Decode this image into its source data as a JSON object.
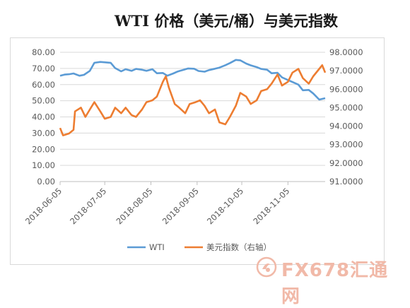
{
  "title": "WTI 价格（美元/桶）与美元指数",
  "watermark": {
    "text": "FX678汇通网"
  },
  "colors": {
    "wti": "#5b9bd5",
    "usd": "#ed7d31",
    "grid": "#d9d9d9",
    "axis_text": "#595959"
  },
  "chart_data": {
    "type": "line",
    "title": "WTI 价格（美元/桶）与美元指数",
    "grid": true,
    "legend_position": "bottom",
    "x_tick_labels": [
      "2018-06-05",
      "2018-07-05",
      "2018-08-05",
      "2018-09-05",
      "2018-10-05",
      "2018-11-05"
    ],
    "x_range": [
      "2018-06-05",
      "2018-11-30"
    ],
    "y_left": {
      "lim": [
        0,
        80
      ],
      "ticks": [
        "0.00",
        "10.00",
        "20.00",
        "30.00",
        "40.00",
        "50.00",
        "60.00",
        "70.00",
        "80.00"
      ]
    },
    "y_right": {
      "lim": [
        91,
        98
      ],
      "ticks": [
        "91.0000",
        "92.0000",
        "93.0000",
        "94.0000",
        "95.0000",
        "96.0000",
        "97.0000",
        "98.0000"
      ]
    },
    "series": [
      {
        "name": "WTI",
        "axis": "left",
        "x": [
          "2018-06-05",
          "2018-06-08",
          "2018-06-11",
          "2018-06-14",
          "2018-06-18",
          "2018-06-21",
          "2018-06-25",
          "2018-06-28",
          "2018-07-02",
          "2018-07-05",
          "2018-07-09",
          "2018-07-12",
          "2018-07-16",
          "2018-07-19",
          "2018-07-23",
          "2018-07-26",
          "2018-07-30",
          "2018-08-02",
          "2018-08-06",
          "2018-08-09",
          "2018-08-13",
          "2018-08-16",
          "2018-08-20",
          "2018-08-23",
          "2018-08-27",
          "2018-08-30",
          "2018-09-03",
          "2018-09-06",
          "2018-09-10",
          "2018-09-13",
          "2018-09-17",
          "2018-09-20",
          "2018-09-24",
          "2018-09-27",
          "2018-10-01",
          "2018-10-04",
          "2018-10-08",
          "2018-10-11",
          "2018-10-15",
          "2018-10-18",
          "2018-10-22",
          "2018-10-25",
          "2018-10-29",
          "2018-11-01",
          "2018-11-05",
          "2018-11-08",
          "2018-11-12",
          "2018-11-15",
          "2018-11-19",
          "2018-11-22",
          "2018-11-26",
          "2018-11-30"
        ],
        "values": [
          65.5,
          66.2,
          66.4,
          66.9,
          65.5,
          66.0,
          68.5,
          73.5,
          74.0,
          73.8,
          73.5,
          70.2,
          68.2,
          69.5,
          68.5,
          69.7,
          69.2,
          68.5,
          69.5,
          67.0,
          67.2,
          65.5,
          66.9,
          68.1,
          69.2,
          70.0,
          69.8,
          68.4,
          68.0,
          69.0,
          69.8,
          70.5,
          72.0,
          73.3,
          75.3,
          75.0,
          73.0,
          71.9,
          70.8,
          69.7,
          69.2,
          67.0,
          67.3,
          64.5,
          62.8,
          61.6,
          60.0,
          56.5,
          56.7,
          54.5,
          50.7,
          51.6
        ]
      },
      {
        "name": "美元指数（右轴）",
        "axis": "right",
        "x": [
          "2018-06-05",
          "2018-06-07",
          "2018-06-11",
          "2018-06-14",
          "2018-06-15",
          "2018-06-19",
          "2018-06-22",
          "2018-06-25",
          "2018-06-28",
          "2018-07-02",
          "2018-07-05",
          "2018-07-09",
          "2018-07-12",
          "2018-07-16",
          "2018-07-19",
          "2018-07-23",
          "2018-07-26",
          "2018-07-30",
          "2018-08-02",
          "2018-08-06",
          "2018-08-09",
          "2018-08-13",
          "2018-08-15",
          "2018-08-17",
          "2018-08-21",
          "2018-08-24",
          "2018-08-28",
          "2018-08-31",
          "2018-09-04",
          "2018-09-07",
          "2018-09-10",
          "2018-09-13",
          "2018-09-17",
          "2018-09-20",
          "2018-09-24",
          "2018-09-27",
          "2018-10-01",
          "2018-10-04",
          "2018-10-08",
          "2018-10-11",
          "2018-10-15",
          "2018-10-18",
          "2018-10-22",
          "2018-10-25",
          "2018-10-29",
          "2018-11-01",
          "2018-11-05",
          "2018-11-08",
          "2018-11-12",
          "2018-11-15",
          "2018-11-19",
          "2018-11-22",
          "2018-11-26",
          "2018-11-28",
          "2018-11-30"
        ],
        "values": [
          93.9,
          93.5,
          93.6,
          93.8,
          94.8,
          95.0,
          94.5,
          94.9,
          95.3,
          94.8,
          94.4,
          94.5,
          95.0,
          94.7,
          95.0,
          94.6,
          94.5,
          94.9,
          95.3,
          95.4,
          95.6,
          96.4,
          96.7,
          96.1,
          95.2,
          95.0,
          94.7,
          95.2,
          95.3,
          95.4,
          95.1,
          94.7,
          94.9,
          94.2,
          94.1,
          94.5,
          95.1,
          95.8,
          95.6,
          95.2,
          95.4,
          95.9,
          96.0,
          96.3,
          96.8,
          96.2,
          96.4,
          96.9,
          97.1,
          96.6,
          96.3,
          96.7,
          97.1,
          97.3,
          96.9
        ]
      }
    ]
  }
}
